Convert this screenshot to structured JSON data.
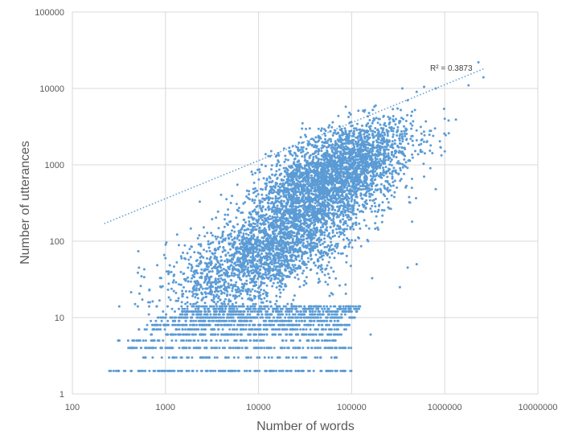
{
  "chart_data": {
    "type": "scatter",
    "title": "",
    "xlabel": "Number of words",
    "ylabel": "Number of utterances",
    "x_scale": "log",
    "y_scale": "log",
    "xlim": [
      100,
      10000000
    ],
    "ylim": [
      1,
      100000
    ],
    "x_ticks": [
      "100",
      "1000",
      "10000",
      "100000",
      "1000000",
      "10000000"
    ],
    "y_ticks": [
      "1",
      "10",
      "100",
      "1000",
      "10000",
      "100000"
    ],
    "grid": true,
    "legend": "none",
    "point_color": "#5B9BD5",
    "trendline": {
      "type": "power",
      "style": "dotted",
      "color": "#5B9BD5",
      "label": "R² = 0.3873",
      "x_range": [
        220,
        2600000
      ],
      "y_range": [
        170,
        18000
      ]
    },
    "clusters": [
      {
        "cx": 80000,
        "cy": 1000,
        "sx": 0.38,
        "sy": 0.3,
        "rho": 0.5,
        "n": 2000
      },
      {
        "cx": 30000,
        "cy": 200,
        "sx": 0.45,
        "sy": 0.45,
        "rho": 0.6,
        "n": 2200
      },
      {
        "cx": 10000,
        "cy": 60,
        "sx": 0.4,
        "sy": 0.35,
        "rho": 0.5,
        "n": 900
      },
      {
        "cx": 3000,
        "cy": 30,
        "sx": 0.35,
        "sy": 0.3,
        "rho": 0.4,
        "n": 350
      }
    ],
    "discrete_rows": [
      {
        "y": 2,
        "x_range": [
          230,
          100000
        ],
        "n": 140
      },
      {
        "y": 3,
        "x_range": [
          550,
          70000
        ],
        "n": 70
      },
      {
        "y": 4,
        "x_range": [
          400,
          100000
        ],
        "n": 150
      },
      {
        "y": 5,
        "x_range": [
          300,
          70000
        ],
        "n": 90
      },
      {
        "y": 6,
        "x_range": [
          1000,
          80000
        ],
        "n": 130
      },
      {
        "y": 7,
        "x_range": [
          500,
          90000
        ],
        "n": 110
      },
      {
        "y": 8,
        "x_range": [
          700,
          100000
        ],
        "n": 160
      },
      {
        "y": 9,
        "x_range": [
          1200,
          80000
        ],
        "n": 100
      },
      {
        "y": 10,
        "x_range": [
          800,
          110000
        ],
        "n": 170
      },
      {
        "y": 11,
        "x_range": [
          1500,
          90000
        ],
        "n": 100
      },
      {
        "y": 12,
        "x_range": [
          1500,
          120000
        ],
        "n": 110
      },
      {
        "y": 13,
        "x_range": [
          2000,
          120000
        ],
        "n": 100
      },
      {
        "y": 14,
        "x_range": [
          2000,
          130000
        ],
        "n": 90
      }
    ],
    "outliers": [
      {
        "x": 2300000,
        "y": 22000
      },
      {
        "x": 2600000,
        "y": 14000
      },
      {
        "x": 1800000,
        "y": 11000
      },
      {
        "x": 600000,
        "y": 10500
      },
      {
        "x": 500000,
        "y": 9000
      },
      {
        "x": 800000,
        "y": 10000
      },
      {
        "x": 350000,
        "y": 10000
      },
      {
        "x": 400000,
        "y": 7000
      },
      {
        "x": 1000000,
        "y": 4000
      },
      {
        "x": 1000000,
        "y": 1500
      },
      {
        "x": 900000,
        "y": 1700
      },
      {
        "x": 800000,
        "y": 480
      },
      {
        "x": 700000,
        "y": 900
      },
      {
        "x": 1100000,
        "y": 3800
      },
      {
        "x": 600000,
        "y": 700
      },
      {
        "x": 500000,
        "y": 50
      },
      {
        "x": 330000,
        "y": 25
      },
      {
        "x": 400000,
        "y": 45
      },
      {
        "x": 160000,
        "y": 6
      },
      {
        "x": 520,
        "y": 45
      },
      {
        "x": 1000,
        "y": 60
      },
      {
        "x": 900,
        "y": 25
      }
    ]
  }
}
